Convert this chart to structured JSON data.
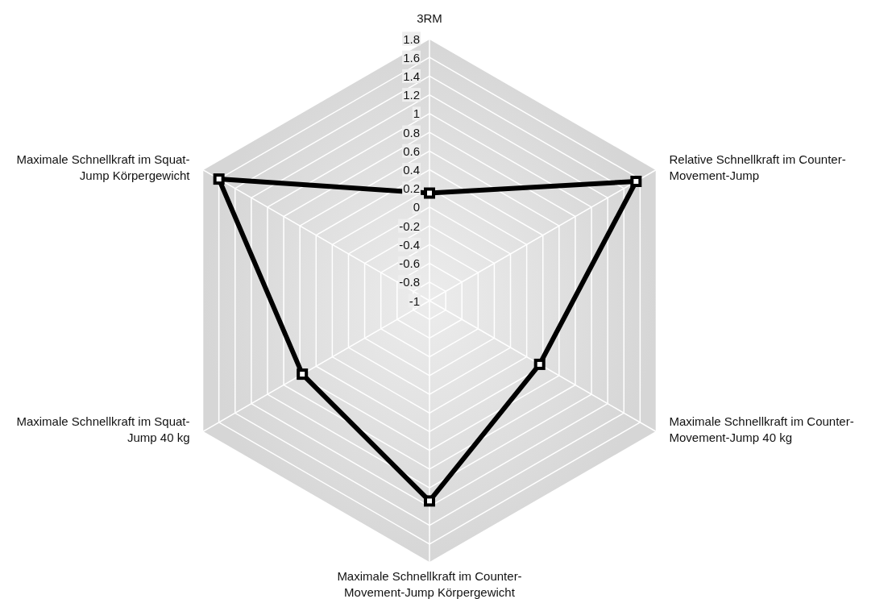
{
  "chart_data": {
    "type": "radar",
    "categories": [
      "3RM",
      "Relative Schnellkraft im Counter-Movement-Jump",
      "Maximale Schnellkraft im Counter-Movement-Jump 40 kg",
      "Maximale Schnellkraft im Counter-Movement-Jump Körpergewicht",
      "Maximale Schnellkraft im Squat-Jump 40 kg",
      "Maximale Schnellkraft im Squat-Jump Körpergewicht"
    ],
    "series": [
      {
        "color": "#000000",
        "values": [
          0.15,
          1.55,
          0.36,
          1.14,
          0.57,
          1.6
        ]
      }
    ],
    "ylim": [
      -1,
      1.8
    ],
    "yticks": [
      -1,
      -0.8,
      -0.6,
      -0.4,
      -0.2,
      0,
      0.2,
      0.4,
      0.6,
      0.8,
      1,
      1.2,
      1.4,
      1.6,
      1.8
    ],
    "grid": true,
    "marker": "square",
    "line_style": "solid"
  }
}
